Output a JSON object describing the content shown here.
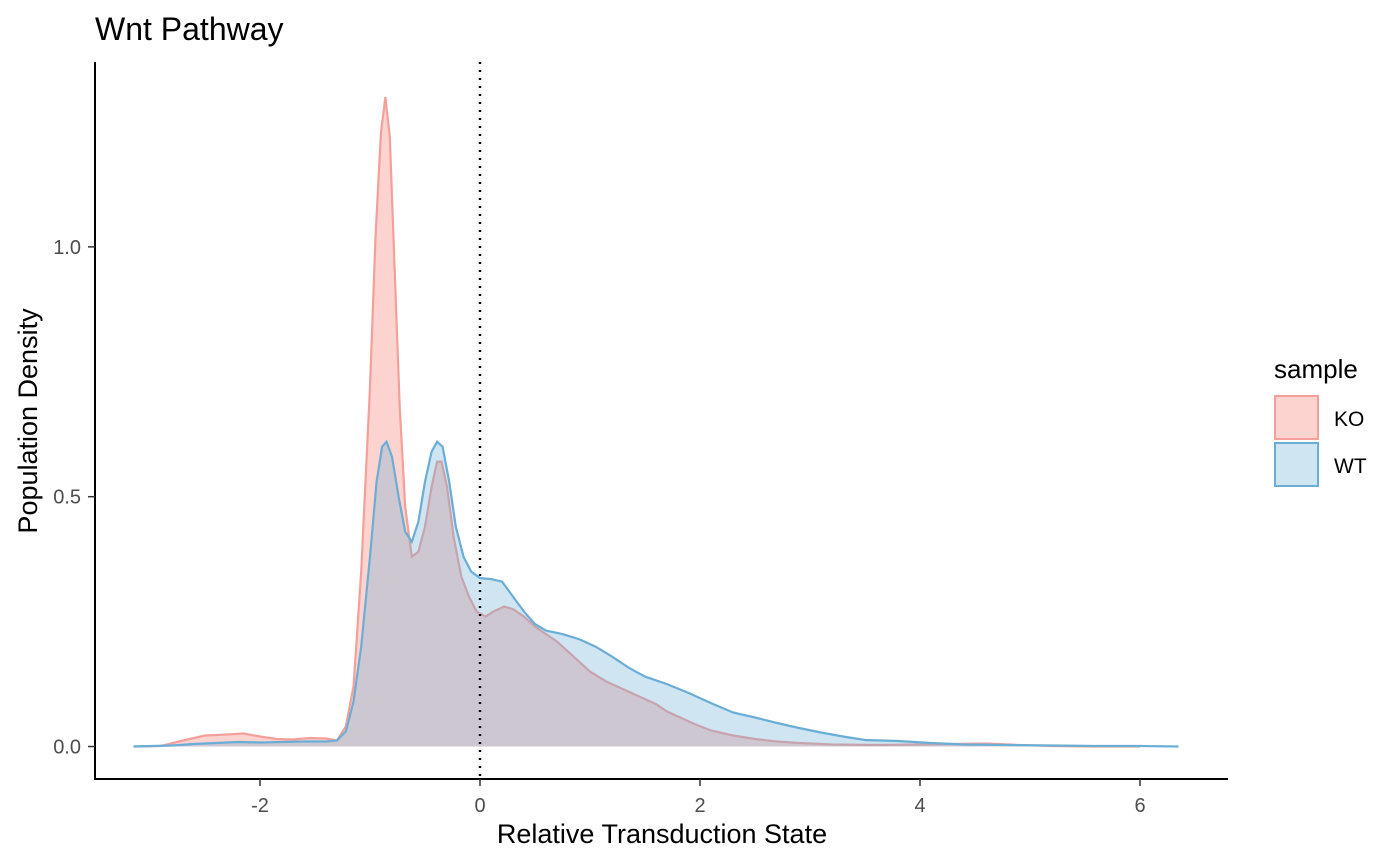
{
  "chart_data": {
    "type": "area",
    "title": "Wnt Pathway",
    "xlabel": "Relative Transduction State",
    "ylabel": "Population Density",
    "xlim": [
      -3.5,
      6.8
    ],
    "ylim": [
      -0.065,
      1.37
    ],
    "x_ticks": [
      -2,
      0,
      2,
      4,
      6
    ],
    "x_tick_labels": [
      "-2",
      "0",
      "2",
      "4",
      "6"
    ],
    "y_ticks": [
      0.0,
      0.5,
      1.0
    ],
    "y_tick_labels": [
      "0.0",
      "0.5",
      "1.0"
    ],
    "grid": false,
    "reference_line": {
      "x": 0,
      "style": "dotted"
    },
    "legend": {
      "title": "sample",
      "position": "right"
    },
    "series": [
      {
        "name": "KO",
        "fill": "#f8766d",
        "stroke": "#f4a09a",
        "points": [
          [
            -3.15,
            0.0
          ],
          [
            -2.9,
            0.001
          ],
          [
            -2.7,
            0.012
          ],
          [
            -2.5,
            0.022
          ],
          [
            -2.3,
            0.024
          ],
          [
            -2.15,
            0.026
          ],
          [
            -2.0,
            0.02
          ],
          [
            -1.85,
            0.015
          ],
          [
            -1.7,
            0.014
          ],
          [
            -1.55,
            0.017
          ],
          [
            -1.4,
            0.016
          ],
          [
            -1.3,
            0.012
          ],
          [
            -1.22,
            0.04
          ],
          [
            -1.15,
            0.12
          ],
          [
            -1.08,
            0.35
          ],
          [
            -1.0,
            0.72
          ],
          [
            -0.95,
            1.02
          ],
          [
            -0.9,
            1.23
          ],
          [
            -0.86,
            1.3
          ],
          [
            -0.82,
            1.22
          ],
          [
            -0.78,
            0.98
          ],
          [
            -0.73,
            0.68
          ],
          [
            -0.68,
            0.48
          ],
          [
            -0.62,
            0.38
          ],
          [
            -0.56,
            0.39
          ],
          [
            -0.5,
            0.44
          ],
          [
            -0.44,
            0.52
          ],
          [
            -0.39,
            0.57
          ],
          [
            -0.35,
            0.57
          ],
          [
            -0.3,
            0.52
          ],
          [
            -0.24,
            0.42
          ],
          [
            -0.17,
            0.34
          ],
          [
            -0.1,
            0.3
          ],
          [
            -0.03,
            0.27
          ],
          [
            0.05,
            0.26
          ],
          [
            0.12,
            0.27
          ],
          [
            0.22,
            0.28
          ],
          [
            0.3,
            0.275
          ],
          [
            0.4,
            0.26
          ],
          [
            0.5,
            0.24
          ],
          [
            0.6,
            0.225
          ],
          [
            0.7,
            0.21
          ],
          [
            0.8,
            0.19
          ],
          [
            0.9,
            0.17
          ],
          [
            1.0,
            0.15
          ],
          [
            1.15,
            0.13
          ],
          [
            1.3,
            0.115
          ],
          [
            1.45,
            0.1
          ],
          [
            1.6,
            0.085
          ],
          [
            1.7,
            0.07
          ],
          [
            1.8,
            0.06
          ],
          [
            1.95,
            0.045
          ],
          [
            2.1,
            0.032
          ],
          [
            2.3,
            0.022
          ],
          [
            2.5,
            0.015
          ],
          [
            2.7,
            0.01
          ],
          [
            2.9,
            0.007
          ],
          [
            3.2,
            0.004
          ],
          [
            3.6,
            0.003
          ],
          [
            4.0,
            0.004
          ],
          [
            4.3,
            0.005
          ],
          [
            4.6,
            0.006
          ],
          [
            4.9,
            0.003
          ],
          [
            5.2,
            0.001
          ],
          [
            5.6,
            0.0
          ],
          [
            6.0,
            0.0
          ]
        ]
      },
      {
        "name": "WT",
        "fill": "#6baed6",
        "stroke": "#6aaed6",
        "points": [
          [
            -3.15,
            0.0
          ],
          [
            -2.8,
            0.002
          ],
          [
            -2.6,
            0.005
          ],
          [
            -2.4,
            0.007
          ],
          [
            -2.2,
            0.009
          ],
          [
            -2.0,
            0.008
          ],
          [
            -1.8,
            0.009
          ],
          [
            -1.6,
            0.01
          ],
          [
            -1.4,
            0.01
          ],
          [
            -1.3,
            0.012
          ],
          [
            -1.22,
            0.03
          ],
          [
            -1.15,
            0.09
          ],
          [
            -1.08,
            0.2
          ],
          [
            -1.0,
            0.38
          ],
          [
            -0.94,
            0.53
          ],
          [
            -0.89,
            0.6
          ],
          [
            -0.85,
            0.61
          ],
          [
            -0.8,
            0.58
          ],
          [
            -0.74,
            0.5
          ],
          [
            -0.68,
            0.43
          ],
          [
            -0.62,
            0.41
          ],
          [
            -0.56,
            0.45
          ],
          [
            -0.5,
            0.53
          ],
          [
            -0.44,
            0.59
          ],
          [
            -0.39,
            0.61
          ],
          [
            -0.34,
            0.6
          ],
          [
            -0.28,
            0.53
          ],
          [
            -0.22,
            0.44
          ],
          [
            -0.15,
            0.38
          ],
          [
            -0.08,
            0.35
          ],
          [
            0.0,
            0.337
          ],
          [
            0.1,
            0.335
          ],
          [
            0.2,
            0.33
          ],
          [
            0.3,
            0.3
          ],
          [
            0.4,
            0.27
          ],
          [
            0.5,
            0.245
          ],
          [
            0.6,
            0.232
          ],
          [
            0.75,
            0.225
          ],
          [
            0.9,
            0.215
          ],
          [
            1.05,
            0.2
          ],
          [
            1.2,
            0.18
          ],
          [
            1.35,
            0.158
          ],
          [
            1.5,
            0.14
          ],
          [
            1.7,
            0.125
          ],
          [
            1.9,
            0.107
          ],
          [
            2.1,
            0.087
          ],
          [
            2.3,
            0.068
          ],
          [
            2.5,
            0.058
          ],
          [
            2.7,
            0.047
          ],
          [
            2.9,
            0.037
          ],
          [
            3.1,
            0.028
          ],
          [
            3.3,
            0.02
          ],
          [
            3.5,
            0.013
          ],
          [
            3.8,
            0.011
          ],
          [
            4.1,
            0.007
          ],
          [
            4.4,
            0.004
          ],
          [
            4.8,
            0.003
          ],
          [
            5.2,
            0.002
          ],
          [
            5.6,
            0.001
          ],
          [
            6.0,
            0.001
          ],
          [
            6.35,
            0.0
          ]
        ]
      }
    ]
  }
}
